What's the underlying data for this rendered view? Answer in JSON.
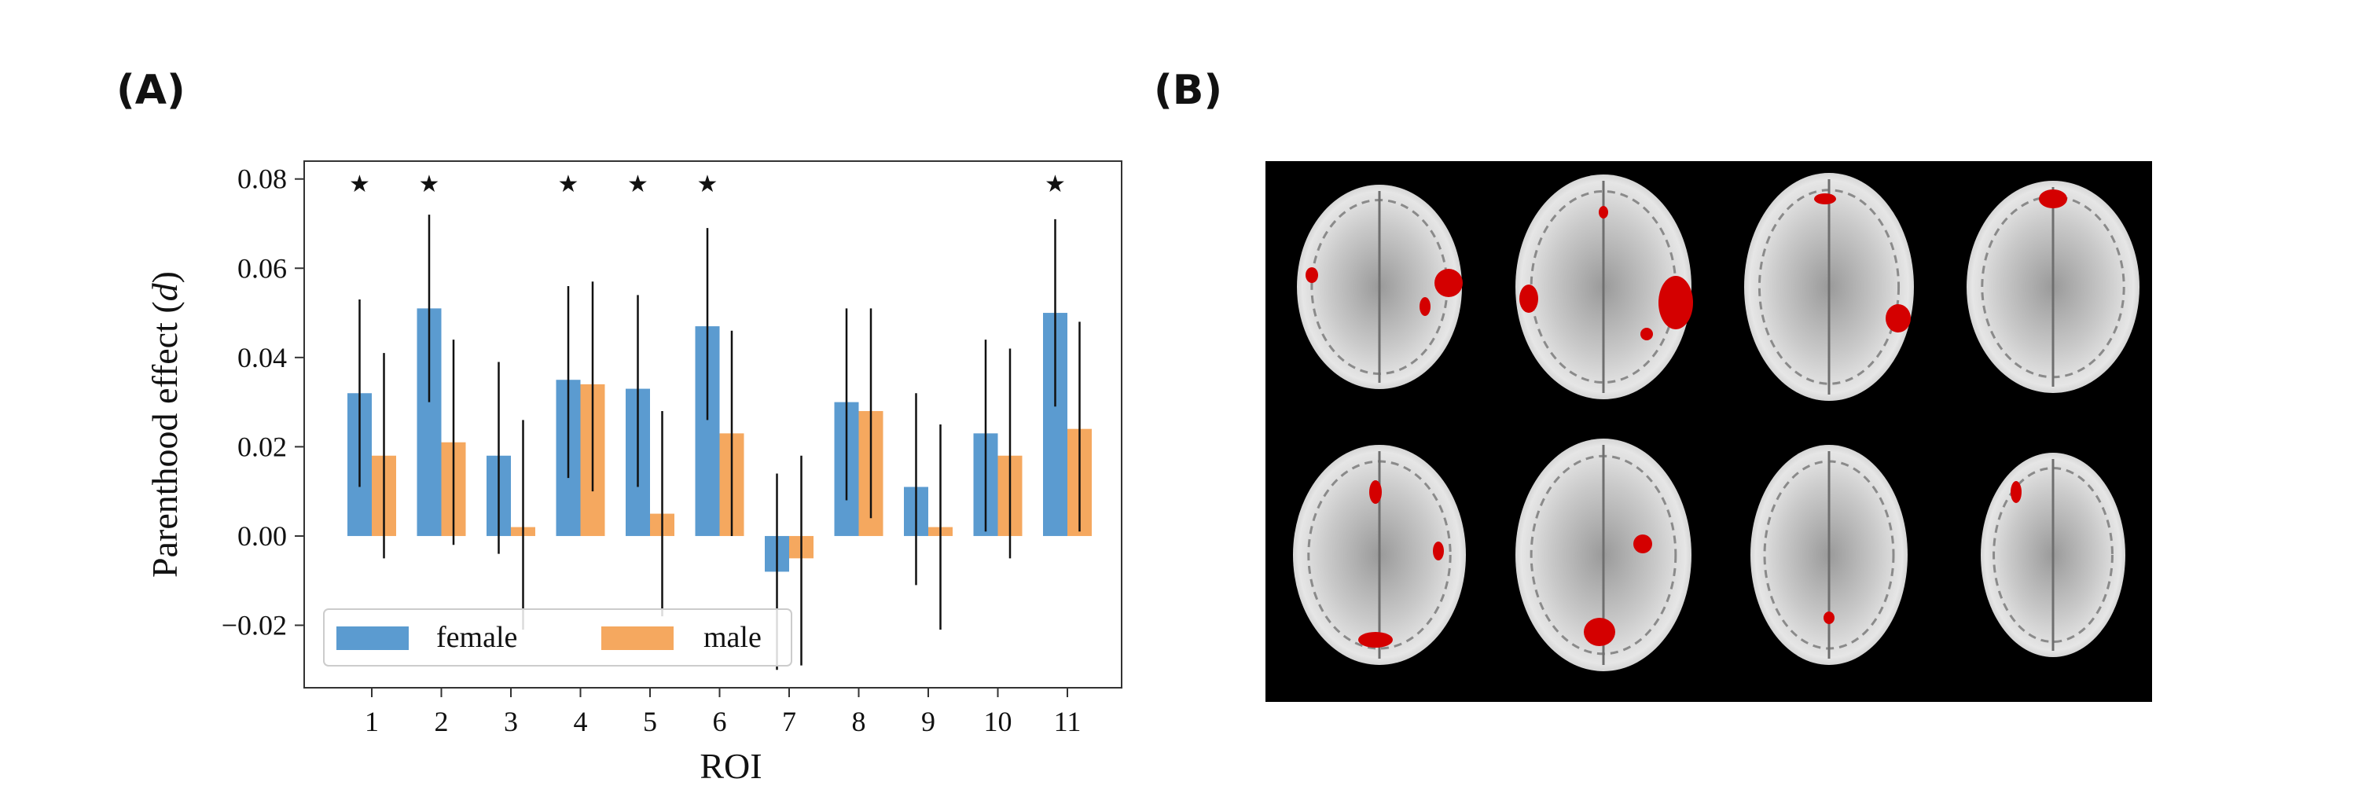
{
  "panels": {
    "a": "(A)",
    "b": "(B)"
  },
  "chart_data": {
    "type": "bar",
    "xlabel": "ROI",
    "ylabel_prefix": "Parenthood effect (",
    "ylabel_var": "d",
    "ylabel_suffix": ")",
    "ylim": [
      -0.034,
      0.084
    ],
    "yticks": [
      -0.02,
      0.0,
      0.02,
      0.04,
      0.06,
      0.08
    ],
    "ytick_labels": [
      "−0.02",
      "0.00",
      "0.02",
      "0.04",
      "0.06",
      "0.08"
    ],
    "categories": [
      "1",
      "2",
      "3",
      "4",
      "5",
      "6",
      "7",
      "8",
      "9",
      "10",
      "11"
    ],
    "series": [
      {
        "name": "female",
        "color": "#5b9bd0",
        "values": [
          0.032,
          0.051,
          0.018,
          0.035,
          0.033,
          0.047,
          -0.008,
          0.03,
          0.011,
          0.023,
          0.05
        ],
        "err_low": [
          0.011,
          0.03,
          -0.004,
          0.013,
          0.011,
          0.026,
          -0.03,
          0.008,
          -0.011,
          0.001,
          0.029
        ],
        "err_high": [
          0.053,
          0.072,
          0.039,
          0.056,
          0.054,
          0.069,
          0.014,
          0.051,
          0.032,
          0.044,
          0.071
        ]
      },
      {
        "name": "male",
        "color": "#f5a85f",
        "values": [
          0.018,
          0.021,
          0.002,
          0.034,
          0.005,
          0.023,
          -0.005,
          0.028,
          0.002,
          0.018,
          0.024
        ],
        "err_low": [
          -0.005,
          -0.002,
          -0.021,
          0.01,
          -0.018,
          0.0,
          -0.029,
          0.004,
          -0.021,
          -0.005,
          0.001
        ],
        "err_high": [
          0.041,
          0.044,
          0.026,
          0.057,
          0.028,
          0.046,
          0.018,
          0.051,
          0.025,
          0.042,
          0.048
        ]
      }
    ],
    "significance": [
      true,
      true,
      false,
      true,
      true,
      true,
      false,
      false,
      false,
      false,
      true
    ],
    "star_symbol": "★",
    "legend": {
      "placement": "lower-left",
      "columns": 2
    },
    "grid": false
  },
  "brain_panel": {
    "background": "#000000",
    "activation_color": "#d40000",
    "slices": 8
  }
}
